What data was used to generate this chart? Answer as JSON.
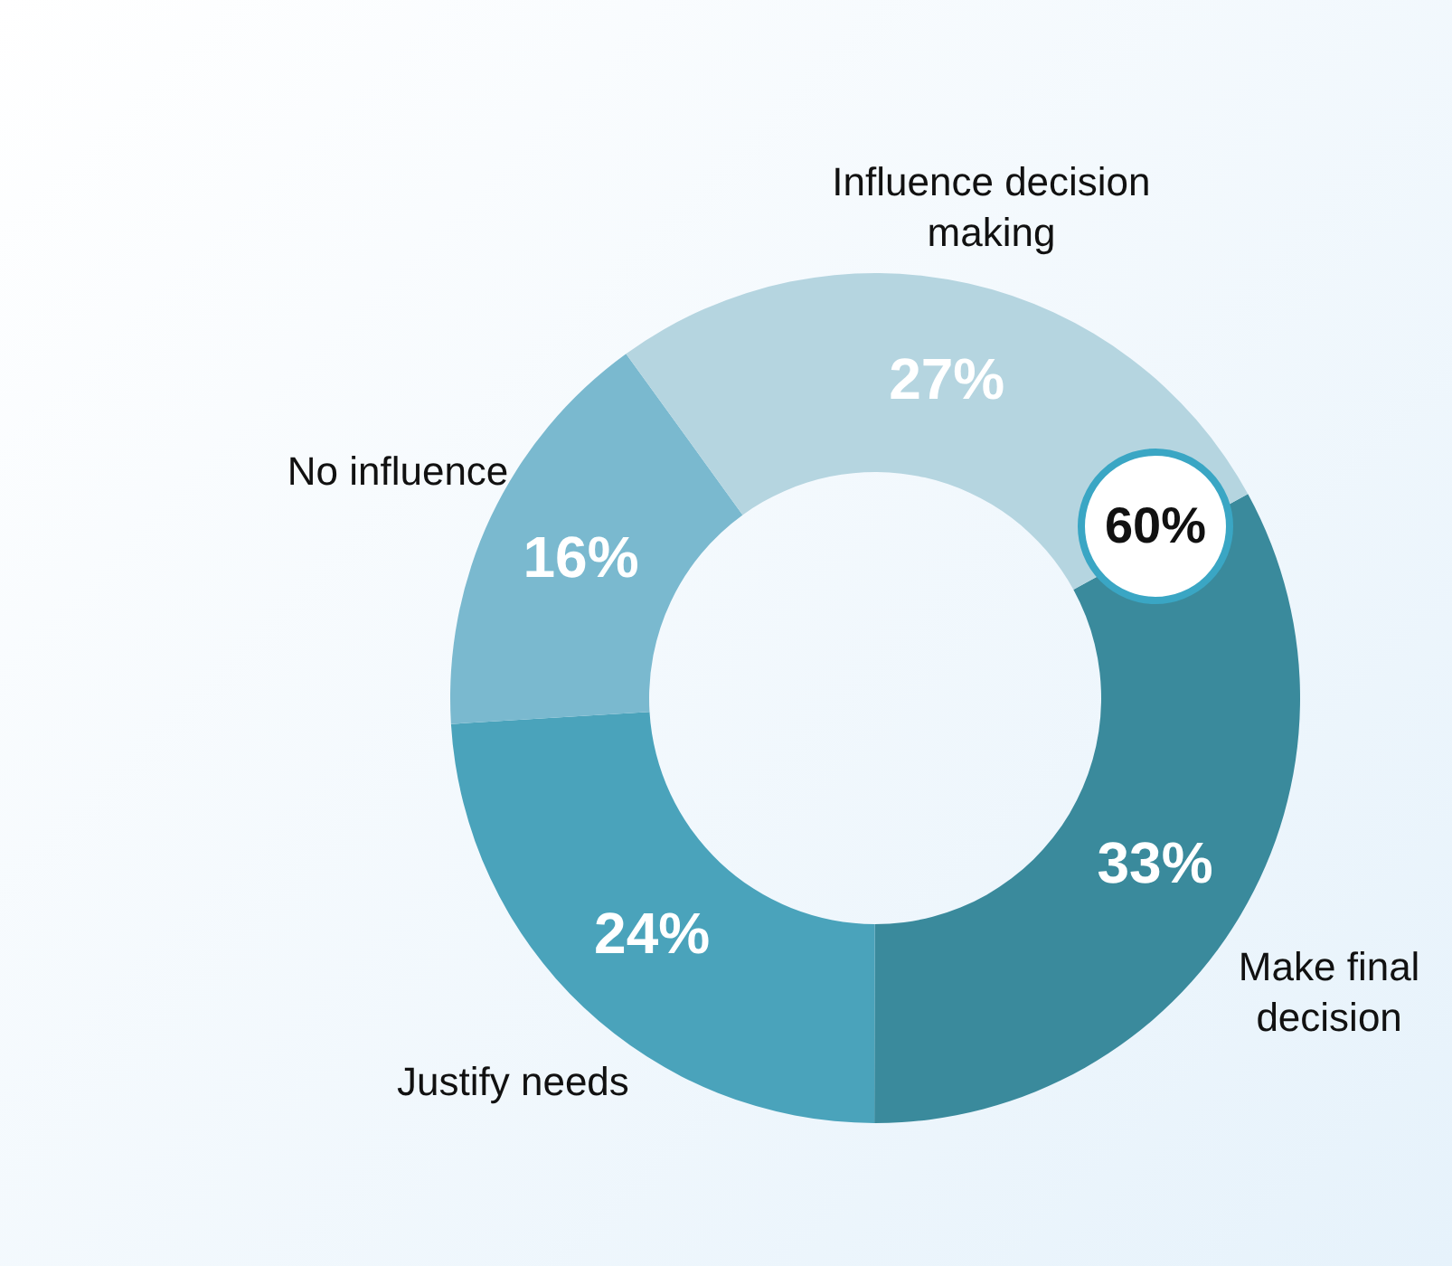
{
  "chart_data": {
    "type": "donut",
    "categories": [
      "Make final decision",
      "Justify needs",
      "No influence",
      "Influence decision making"
    ],
    "values": [
      33,
      24,
      16,
      27
    ],
    "colors": [
      "#3a8a9c",
      "#4aa3bb",
      "#7ab9cf",
      "#b5d5e0"
    ],
    "value_labels": [
      "33%",
      "24%",
      "16%",
      "27%"
    ],
    "data_labels": true,
    "annotations": [
      "60%"
    ]
  }
}
